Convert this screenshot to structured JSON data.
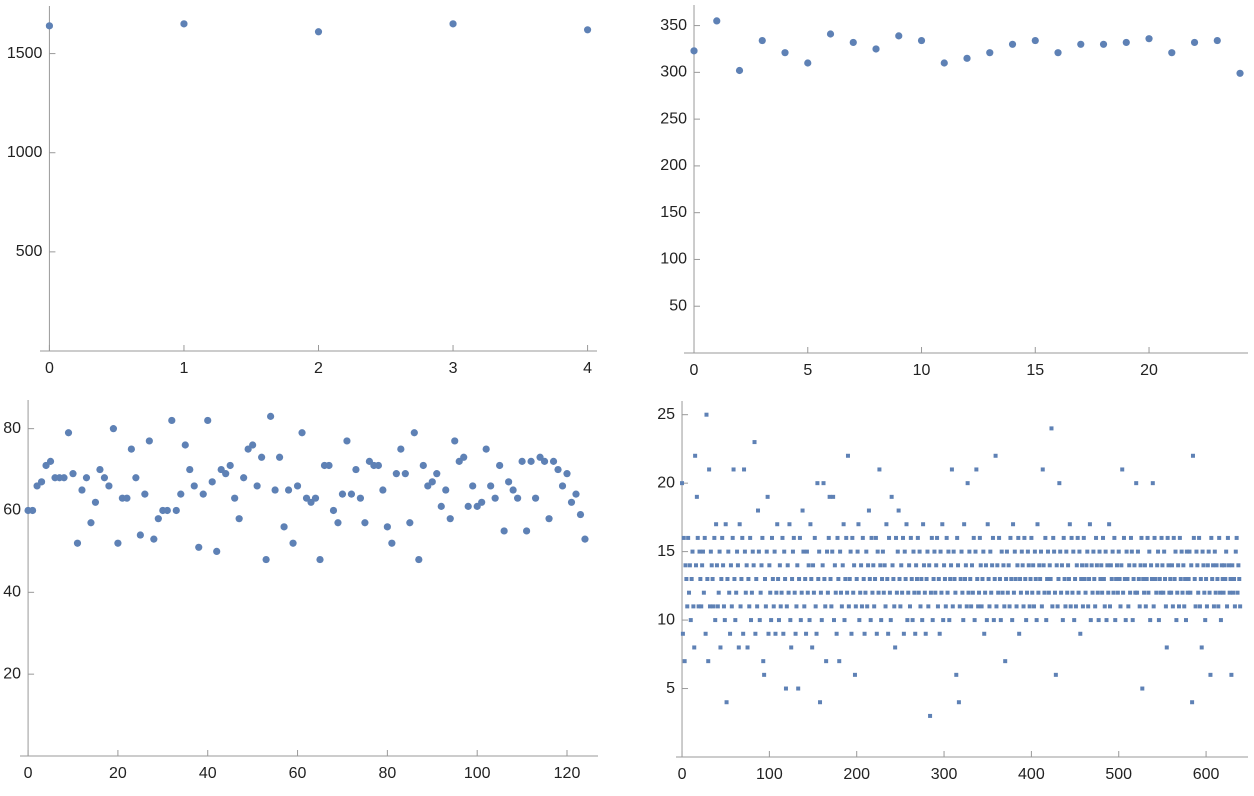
{
  "chart_data": [
    {
      "type": "scatter",
      "color": "#5e81b5",
      "marker": "circle",
      "values": [
        1640,
        1650,
        1610,
        1650,
        1620
      ],
      "xlim": [
        -0.07,
        4.07
      ],
      "ylim": [
        0,
        1740
      ],
      "xticks": [
        0,
        1,
        2,
        3,
        4
      ],
      "yticks": [
        500,
        1000,
        1500
      ]
    },
    {
      "type": "scatter",
      "color": "#5e81b5",
      "marker": "circle",
      "values": [
        323,
        355,
        302,
        334,
        321,
        310,
        341,
        332,
        325,
        339,
        334,
        310,
        315,
        321,
        330,
        334,
        321,
        330,
        330,
        332,
        336,
        321,
        332,
        334,
        299
      ],
      "xlim": [
        -0.44,
        24.35
      ],
      "ylim": [
        0,
        372
      ],
      "xticks": [
        0,
        5,
        10,
        15,
        20
      ],
      "yticks": [
        50,
        100,
        150,
        200,
        250,
        300,
        350
      ]
    },
    {
      "type": "scatter",
      "color": "#5e81b5",
      "marker": "circle",
      "values": [
        60,
        60,
        66,
        67,
        71,
        72,
        68,
        68,
        68,
        79,
        69,
        52,
        65,
        68,
        57,
        62,
        70,
        68,
        66,
        80,
        52,
        63,
        63,
        75,
        68,
        54,
        64,
        77,
        53,
        58,
        60,
        60,
        82,
        60,
        64,
        76,
        70,
        66,
        51,
        64,
        82,
        67,
        50,
        70,
        69,
        71,
        63,
        58,
        68,
        75,
        76,
        66,
        73,
        48,
        83,
        65,
        73,
        56,
        65,
        52,
        66,
        79,
        63,
        62,
        63,
        48,
        71,
        71,
        60,
        57,
        64,
        77,
        64,
        70,
        63,
        57,
        72,
        71,
        71,
        65,
        56,
        52,
        69,
        75,
        69,
        57,
        79,
        48,
        71,
        66,
        67,
        69,
        61,
        65,
        58,
        77,
        72,
        73,
        61,
        66,
        61,
        62,
        75,
        66,
        63,
        71,
        55,
        67,
        65,
        63,
        72,
        55,
        72,
        63,
        73,
        72,
        58,
        72,
        70,
        66,
        69,
        62,
        64,
        59,
        53
      ],
      "xlim": [
        -1.8,
        126.9
      ],
      "ylim": [
        0,
        87
      ],
      "xticks": [
        0,
        20,
        40,
        60,
        80,
        100,
        120
      ],
      "yticks": [
        20,
        40,
        60,
        80
      ]
    },
    {
      "type": "scatter",
      "color": "#5e81b5",
      "marker": "square",
      "values": [
        20,
        9,
        16,
        7,
        14,
        13,
        11,
        16,
        12,
        14,
        10,
        13,
        15,
        11,
        8,
        22,
        14,
        19,
        16,
        11,
        15,
        13,
        11,
        14,
        15,
        12,
        16,
        9,
        25,
        13,
        7,
        21,
        11,
        15,
        14,
        13,
        11,
        16,
        10,
        17,
        14,
        11,
        12,
        15,
        8,
        13,
        16,
        14,
        11,
        10,
        17,
        4,
        13,
        15,
        12,
        9,
        14,
        11,
        16,
        21,
        13,
        10,
        12,
        15,
        14,
        8,
        17,
        11,
        13,
        16,
        9,
        21,
        15,
        12,
        14,
        8,
        13,
        11,
        16,
        10,
        12,
        15,
        14,
        23,
        9,
        13,
        11,
        18,
        15,
        10,
        12,
        14,
        16,
        7,
        6,
        13,
        11,
        15,
        19,
        9,
        14,
        12,
        10,
        16,
        13,
        11,
        15,
        9,
        12,
        17,
        13,
        10,
        14,
        11,
        12,
        16,
        9,
        15,
        13,
        5,
        11,
        14,
        12,
        17,
        10,
        8,
        13,
        15,
        16,
        12,
        9,
        11,
        14,
        5,
        13,
        16,
        10,
        12,
        18,
        15,
        11,
        13,
        9,
        15,
        12,
        14,
        10,
        17,
        13,
        8,
        14,
        12,
        16,
        11,
        9,
        20,
        13,
        15,
        4,
        12,
        10,
        14,
        20,
        13,
        11,
        7,
        15,
        12,
        16,
        19,
        13,
        11,
        15,
        19,
        10,
        14,
        12,
        9,
        16,
        13,
        7,
        15,
        12,
        11,
        14,
        17,
        10,
        13,
        16,
        12,
        22,
        11,
        13,
        15,
        9,
        16,
        12,
        14,
        6,
        11,
        13,
        15,
        17,
        10,
        12,
        14,
        11,
        16,
        13,
        9,
        12,
        15,
        11,
        14,
        18,
        13,
        10,
        16,
        12,
        14,
        11,
        13,
        16,
        9,
        15,
        12,
        21,
        14,
        10,
        13,
        15,
        12,
        14,
        11,
        17,
        13,
        9,
        16,
        12,
        10,
        19,
        14,
        13,
        11,
        8,
        16,
        12,
        15,
        18,
        13,
        11,
        14,
        12,
        16,
        9,
        15,
        13,
        17,
        10,
        12,
        14,
        11,
        16,
        13,
        10,
        15,
        12,
        9,
        14,
        13,
        16,
        12,
        15,
        11,
        13,
        10,
        17,
        14,
        12,
        9,
        13,
        15,
        11,
        14,
        3,
        12,
        16,
        10,
        13,
        15,
        12,
        14,
        16,
        11,
        13,
        9,
        15,
        12,
        17,
        10,
        14,
        13,
        11,
        16,
        12,
        15,
        10,
        13,
        14,
        21,
        11,
        15,
        13,
        12,
        6,
        16,
        14,
        4,
        11,
        13,
        15,
        12,
        10,
        17,
        13,
        14,
        11,
        20,
        12,
        15,
        13,
        11,
        14,
        12,
        16,
        10,
        15,
        21,
        13,
        11,
        12,
        16,
        14,
        11,
        13,
        15,
        9,
        12,
        14,
        10,
        17,
        13,
        11,
        15,
        12,
        14,
        16,
        10,
        13,
        22,
        11,
        14,
        12,
        16,
        13,
        10,
        15,
        12,
        14,
        11,
        7,
        13,
        15,
        12,
        14,
        11,
        16,
        13,
        10,
        17,
        12,
        15,
        13,
        11,
        14,
        16,
        9,
        13,
        12,
        15,
        14,
        11,
        16,
        13,
        10,
        12,
        15,
        14,
        11,
        13,
        16,
        12,
        14,
        11,
        15,
        13,
        10,
        17,
        12,
        14,
        13,
        15,
        11,
        21,
        14,
        12,
        16,
        10,
        13,
        15,
        12,
        14,
        13,
        24,
        11,
        16,
        15,
        12,
        6,
        14,
        11,
        13,
        20,
        15,
        12,
        14,
        10,
        16,
        13,
        11,
        15,
        12,
        14,
        13,
        17,
        11,
        16,
        12,
        15,
        10,
        13,
        11,
        14,
        16,
        12,
        15,
        9,
        13,
        14,
        11,
        16,
        13,
        12,
        14,
        15,
        11,
        13,
        17,
        10,
        14,
        12,
        15,
        13,
        11,
        16,
        14,
        12,
        10,
        15,
        13,
        14,
        12,
        16,
        13,
        11,
        15,
        10,
        14,
        12,
        17,
        11,
        14,
        13,
        15,
        12,
        16,
        10,
        13,
        14,
        12,
        15,
        13,
        11,
        14,
        21,
        12,
        16,
        13,
        10,
        15,
        13,
        11,
        14,
        12,
        16,
        15,
        10,
        13,
        14,
        12,
        20,
        12,
        15,
        13,
        11,
        14,
        16,
        5,
        13,
        12,
        14,
        11,
        13,
        16,
        12,
        15,
        10,
        14,
        13,
        20,
        11,
        16,
        13,
        12,
        14,
        15,
        10,
        13,
        12,
        16,
        14,
        12,
        15,
        13,
        11,
        8,
        16,
        14,
        12,
        13,
        12,
        14,
        11,
        16,
        13,
        15,
        10,
        12,
        14,
        11,
        16,
        13,
        15,
        12,
        14,
        11,
        13,
        10,
        15,
        12,
        13,
        15,
        12,
        14,
        4,
        22,
        16,
        13,
        11,
        15,
        14,
        12,
        16,
        11,
        13,
        8,
        15,
        14,
        12,
        10,
        13,
        11,
        14,
        15,
        12,
        6,
        16,
        13,
        14,
        11,
        15,
        12,
        14,
        13,
        11,
        16,
        12,
        10,
        14,
        13,
        12,
        14,
        13,
        15,
        11,
        16,
        14,
        12,
        13,
        6,
        14,
        12,
        13,
        11,
        15,
        16,
        12,
        14,
        13,
        11
      ],
      "xlim": [
        -6.9,
        648
      ],
      "ylim": [
        0,
        26
      ],
      "xticks": [
        0,
        100,
        200,
        300,
        400,
        500,
        600
      ],
      "yticks": [
        5,
        10,
        15,
        20,
        25
      ]
    }
  ]
}
